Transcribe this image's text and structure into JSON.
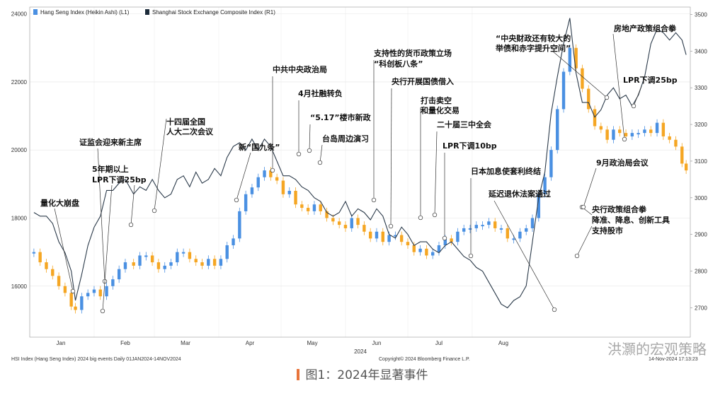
{
  "chart_data": {
    "type": "line",
    "legend": [
      {
        "label": "Hang Seng Index (Heikin Ashi) (L1)",
        "color": "#4a90e2"
      },
      {
        "label": "Shanghai Stock Exchange Composite Index (R1)",
        "color": "#1c2b3a"
      }
    ],
    "left_axis": {
      "ticks": [
        "24000",
        "22000",
        "20000",
        "18000",
        "16000"
      ],
      "range": [
        14500,
        24200
      ]
    },
    "right_axis": {
      "ticks": [
        "3500",
        "3400",
        "3300",
        "3200",
        "3100",
        "3000",
        "2900",
        "2800",
        "2700"
      ],
      "range": [
        2620,
        3520
      ]
    },
    "x_ticks": [
      "Jan",
      "Feb",
      "Mar",
      "Apr",
      "May",
      "Jun",
      "Jul",
      "Aug"
    ],
    "x_year": "2024",
    "series": [
      {
        "name": "Hang Seng Index (Heikin Ashi) (L1)",
        "style": "heikin-ashi candles",
        "colors": {
          "up": "#4a90e2",
          "down": "#f5a623"
        },
        "x": [
          2,
          5,
          8,
          11,
          14,
          17,
          20,
          22,
          25,
          28,
          31,
          34,
          37,
          40,
          43,
          46,
          50,
          53,
          56,
          59,
          62,
          65,
          68,
          71,
          74,
          77,
          80,
          83,
          86,
          89,
          92,
          95,
          98,
          101,
          104,
          107,
          110,
          113,
          116,
          119,
          122,
          125,
          128,
          131,
          134,
          137,
          140,
          143,
          146,
          149,
          152,
          155,
          158,
          161,
          164,
          167,
          170,
          173,
          176,
          179,
          182,
          185,
          188,
          191,
          194,
          197,
          200,
          203,
          206,
          209,
          212,
          215,
          218,
          221,
          224,
          227,
          230,
          233,
          236,
          239,
          242,
          245,
          248,
          251,
          254,
          257,
          260,
          263,
          266,
          269,
          272,
          275,
          278,
          281,
          284,
          287,
          290,
          293,
          296,
          299,
          302,
          305,
          308,
          311,
          314,
          316
        ],
        "values": [
          17000,
          16700,
          16500,
          16300,
          16000,
          15800,
          15400,
          15300,
          15700,
          15800,
          15900,
          15700,
          16000,
          16200,
          16500,
          16700,
          16600,
          16900,
          16900,
          16700,
          16500,
          16600,
          16700,
          17000,
          17000,
          16800,
          16700,
          16600,
          16800,
          16600,
          16800,
          17200,
          17400,
          18200,
          18700,
          18900,
          19200,
          19400,
          19200,
          19100,
          18700,
          18800,
          18400,
          18300,
          18200,
          18400,
          18200,
          18000,
          17900,
          17800,
          17700,
          18000,
          17800,
          17600,
          17400,
          17600,
          17300,
          17500,
          17500,
          17300,
          17200,
          17000,
          17100,
          16900,
          17000,
          17200,
          17400,
          17300,
          17600,
          17700,
          17700,
          17800,
          17800,
          17900,
          17700,
          17700,
          17400,
          17400,
          17600,
          17700,
          18000,
          18700,
          19200,
          20000,
          21200,
          22300,
          23000,
          22400,
          21800,
          21200,
          20700,
          20600,
          20300,
          20600,
          20500,
          20400,
          20500,
          20500,
          20600,
          20500,
          20800,
          20400,
          20300,
          20100,
          19600,
          19400
        ]
      },
      {
        "name": "Shanghai Stock Exchange Composite Index (R1)",
        "x": [
          2,
          5,
          8,
          11,
          14,
          17,
          20,
          22,
          25,
          28,
          31,
          34,
          37,
          40,
          43,
          46,
          50,
          53,
          56,
          59,
          62,
          65,
          68,
          71,
          74,
          77,
          80,
          83,
          86,
          89,
          92,
          95,
          98,
          101,
          104,
          107,
          110,
          113,
          116,
          119,
          122,
          125,
          128,
          131,
          134,
          137,
          140,
          143,
          146,
          149,
          152,
          155,
          158,
          161,
          164,
          167,
          170,
          173,
          176,
          179,
          182,
          185,
          188,
          191,
          194,
          197,
          200,
          203,
          206,
          209,
          212,
          215,
          218,
          221,
          224,
          227,
          230,
          233,
          236,
          239,
          242,
          245,
          248,
          251,
          254,
          257,
          260,
          263,
          266,
          269,
          272,
          275,
          278,
          281,
          284,
          287,
          290,
          293,
          296,
          299,
          302,
          305,
          308,
          311,
          314,
          316
        ],
        "values": [
          2960,
          2950,
          2950,
          2930,
          2880,
          2850,
          2800,
          2720,
          2790,
          2870,
          2920,
          2950,
          3020,
          3020,
          3040,
          3050,
          3010,
          3030,
          3020,
          3050,
          3020,
          3000,
          3010,
          3050,
          3060,
          3030,
          3070,
          3040,
          3050,
          3080,
          3060,
          3110,
          3140,
          3150,
          3130,
          3160,
          3130,
          3160,
          3140,
          3100,
          3060,
          3060,
          3050,
          3030,
          3020,
          3000,
          2990,
          2960,
          2950,
          2960,
          2990,
          2950,
          2970,
          2960,
          2940,
          2970,
          2950,
          2900,
          2890,
          2920,
          2900,
          2870,
          2880,
          2880,
          2860,
          2850,
          2870,
          2880,
          2860,
          2840,
          2830,
          2810,
          2800,
          2770,
          2740,
          2710,
          2700,
          2720,
          2730,
          2760,
          2880,
          3000,
          3070,
          3230,
          3330,
          3420,
          3490,
          3340,
          3260,
          3260,
          3220,
          3240,
          3280,
          3300,
          3270,
          3280,
          3250,
          3280,
          3330,
          3420,
          3460,
          3450,
          3430,
          3450,
          3430,
          3390
        ]
      }
    ],
    "annotations": [
      {
        "text": "量化大崩盘"
      },
      {
        "text": "证监会迎来新主席"
      },
      {
        "text": "5年期以上"
      },
      {
        "text": "LPR下调25bp"
      },
      {
        "text": "十四届全国"
      },
      {
        "text": "人大二次会议"
      },
      {
        "text": "新“国九条”"
      },
      {
        "text": "中共中央政治局"
      },
      {
        "text": "4月社融转负"
      },
      {
        "text": "“5.17”楼市新政"
      },
      {
        "text": "台岛周边演习"
      },
      {
        "text": "支持性的货币政策立场"
      },
      {
        "text": "“科创板八条”"
      },
      {
        "text": "央行开展国债借入"
      },
      {
        "text": "打击卖空"
      },
      {
        "text": "和量化交易"
      },
      {
        "text": "二十届三中全会"
      },
      {
        "text": "LPR下调10bp"
      },
      {
        "text": "日本加息使套利终结"
      },
      {
        "text": "延迟退休法案通过"
      },
      {
        "text": "央行政策组合拳"
      },
      {
        "text": "降准、降息、创新工具"
      },
      {
        "text": "支持股市"
      },
      {
        "text": "9月政治局会议"
      },
      {
        "text": "“中央财政还有较大的"
      },
      {
        "text": "举债和赤字提升空间”"
      },
      {
        "text": "房地产政策组合拳"
      },
      {
        "text": "LPR下调25bp"
      }
    ]
  },
  "footer": {
    "left": "HSI Index (Hang Seng Index) 2024 big events  Daily 01JAN2024-14NOV2024",
    "center": "Copyright© 2024 Bloomberg Finance L.P.",
    "right": "14-Nov-2024 17:13:23"
  },
  "caption": "图1：2024年显著事件",
  "watermark": "洪灝的宏观策略"
}
